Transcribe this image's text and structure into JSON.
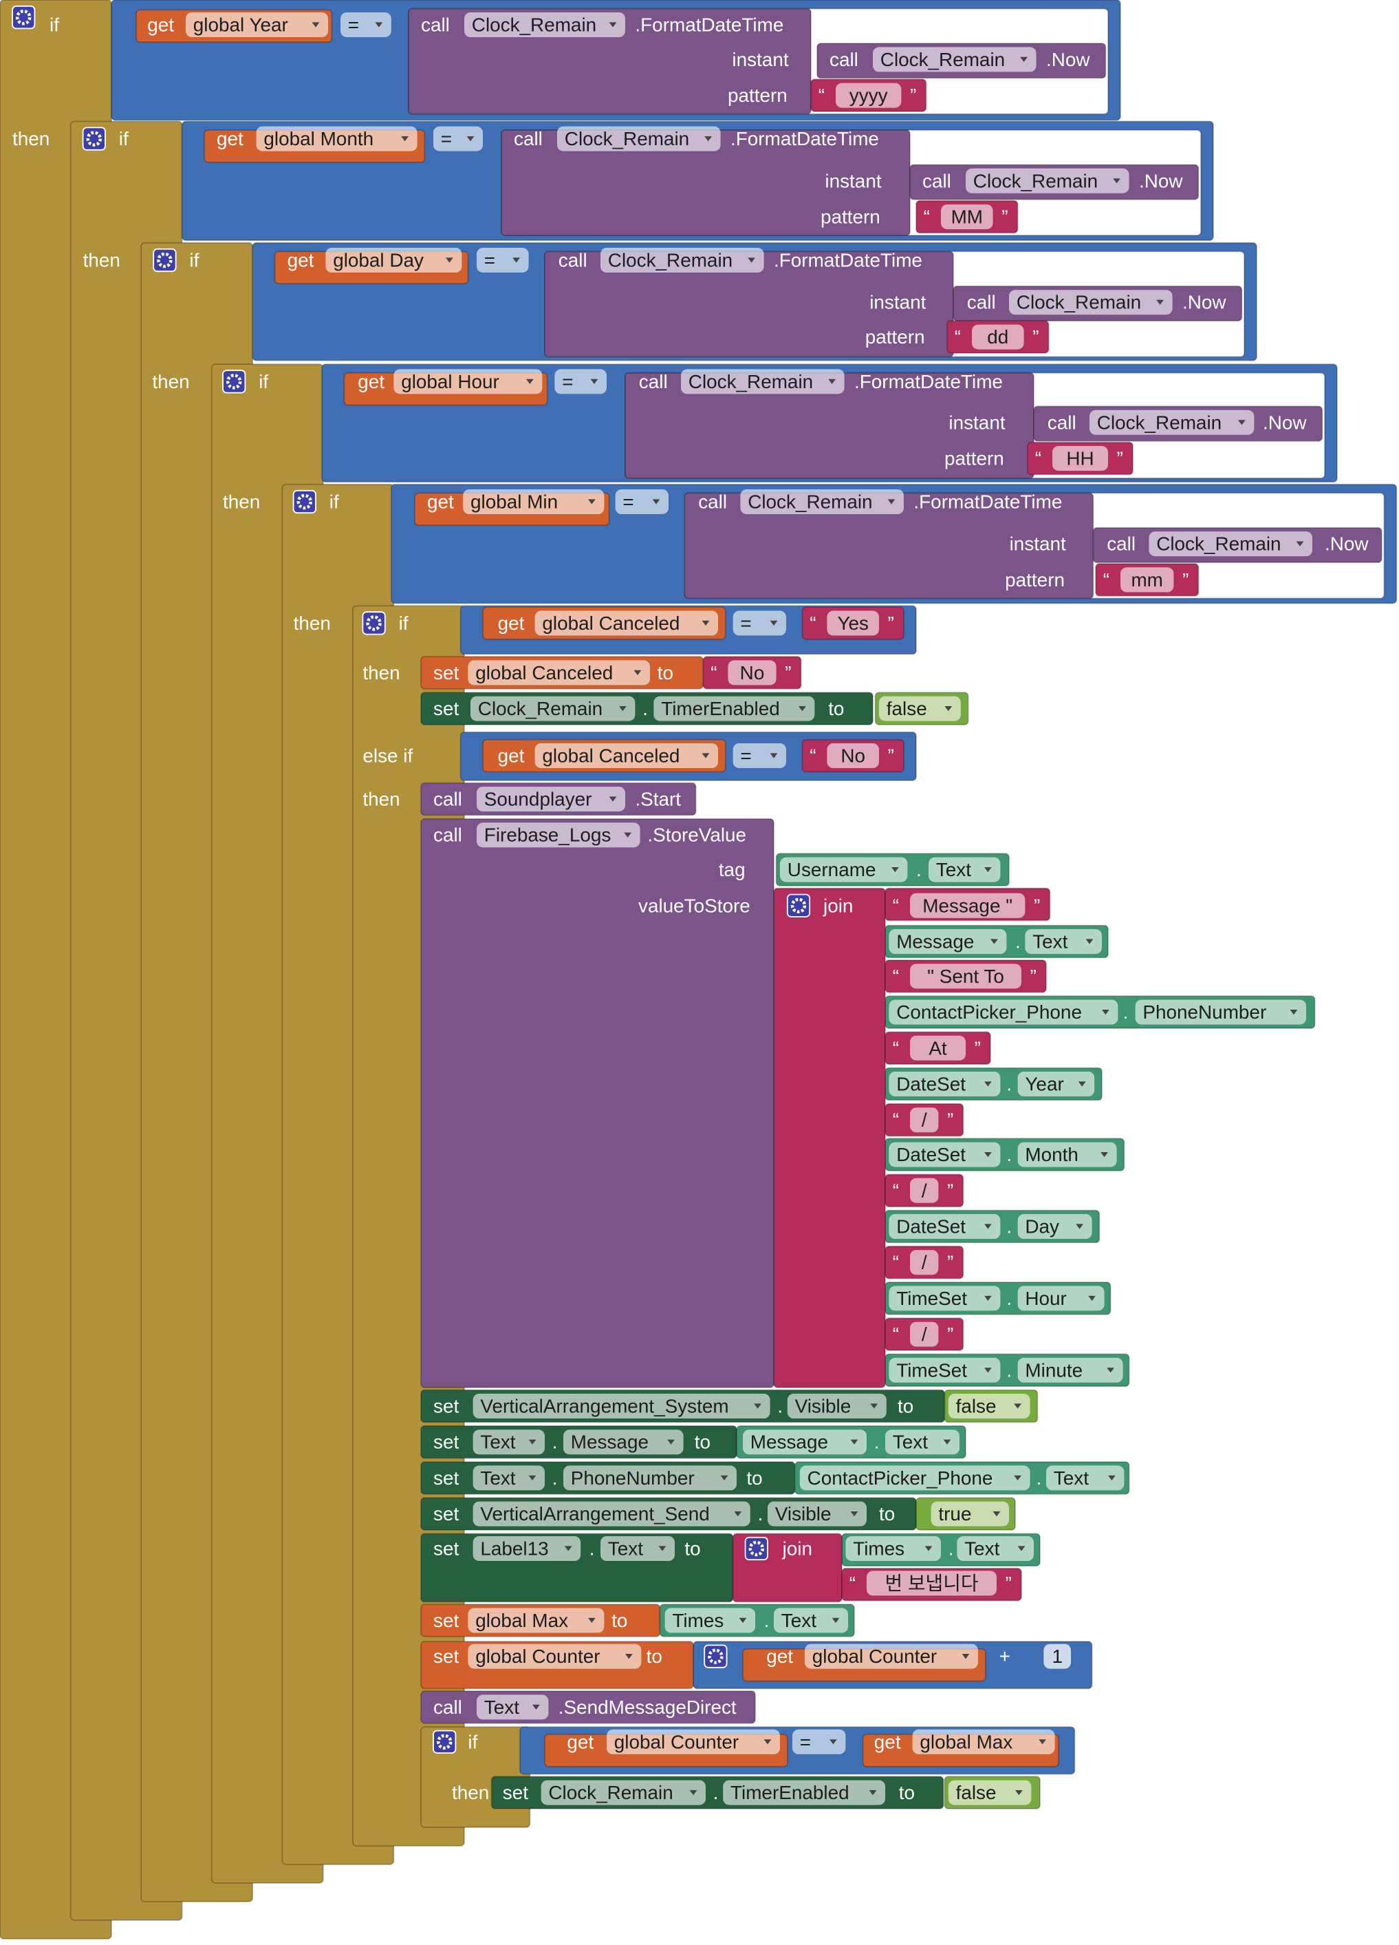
{
  "quote_open": "“",
  "quote_close": "”",
  "rows": [
    [
      "if",
      "get",
      "global Year",
      "=",
      "call",
      "Clock_Remain",
      ".FormatDateTime"
    ],
    [
      "instant",
      "call",
      "Clock_Remain",
      ".Now"
    ],
    [
      "pattern",
      "yyyy"
    ],
    [
      "then",
      "if",
      "get",
      "global Month",
      "=",
      "call",
      "Clock_Remain",
      ".FormatDateTime"
    ],
    [
      "instant",
      "call",
      "Clock_Remain",
      ".Now"
    ],
    [
      "pattern",
      "MM"
    ],
    [
      "then",
      "if",
      "get",
      "global Day",
      "=",
      "call",
      "Clock_Remain",
      ".FormatDateTime"
    ],
    [
      "instant",
      "call",
      "Clock_Remain",
      ".Now"
    ],
    [
      "pattern",
      "dd"
    ],
    [
      "then",
      "if",
      "get",
      "global Hour",
      "=",
      "call",
      "Clock_Remain",
      ".FormatDateTime"
    ],
    [
      "instant",
      "call",
      "Clock_Remain",
      ".Now"
    ],
    [
      "pattern",
      "HH"
    ],
    [
      "then",
      "if",
      "get",
      "global Min",
      "=",
      "call",
      "Clock_Remain",
      ".FormatDateTime"
    ],
    [
      "instant",
      "call",
      "Clock_Remain",
      ".Now"
    ],
    [
      "pattern",
      "mm"
    ],
    [
      "then",
      "if",
      "get",
      "global Canceled",
      "=",
      "Yes"
    ],
    [
      "then",
      "set",
      "global Canceled",
      "to",
      "No"
    ],
    [
      "set",
      "Clock_Remain",
      ".",
      "TimerEnabled",
      "to",
      "false"
    ],
    [
      "else if",
      "get",
      "global Canceled",
      "=",
      "No"
    ],
    [
      "then",
      "call",
      "Soundplayer",
      ".Start"
    ],
    [
      "call",
      "Firebase_Logs",
      ".StoreValue"
    ],
    [
      "tag",
      "Username",
      ".",
      "Text"
    ],
    [
      "valueToStore",
      "join",
      "Message \""
    ],
    [
      "Message",
      ".",
      "Text"
    ],
    [
      "\" Sent To"
    ],
    [
      "ContactPicker_Phone",
      ".",
      "PhoneNumber"
    ],
    [
      "At"
    ],
    [
      "DateSet",
      ".",
      "Year"
    ],
    [
      "/"
    ],
    [
      "DateSet",
      ".",
      "Month"
    ],
    [
      "/"
    ],
    [
      "DateSet",
      ".",
      "Day"
    ],
    [
      "/"
    ],
    [
      "TimeSet",
      ".",
      "Hour"
    ],
    [
      "/"
    ],
    [
      "TimeSet",
      ".",
      "Minute"
    ],
    [
      "set",
      "VerticalArrangement_System",
      ".",
      "Visible",
      "to",
      "false"
    ],
    [
      "set",
      "Text",
      ".",
      "Message",
      "to",
      "Message",
      ".",
      "Text"
    ],
    [
      "set",
      "Text",
      ".",
      "PhoneNumber",
      "to",
      "ContactPicker_Phone",
      ".",
      "Text"
    ],
    [
      "set",
      "VerticalArrangement_Send",
      ".",
      "Visible",
      "to",
      "true"
    ],
    [
      "set",
      "Label13",
      ".",
      "Text",
      "to",
      "join",
      "Times",
      ".",
      "Text"
    ],
    [
      "번 보냅니다"
    ],
    [
      "set",
      "global Max",
      "to",
      "Times",
      ".",
      "Text"
    ],
    [
      "set",
      "global Counter",
      "to",
      "get",
      "global Counter",
      "+",
      "1"
    ],
    [
      "call",
      "Text",
      ".SendMessageDirect"
    ],
    [
      "if",
      "get",
      "global Counter",
      "=",
      "get",
      "global Max"
    ],
    [
      "then",
      "set",
      "Clock_Remain",
      ".",
      "TimerEnabled",
      "to",
      "false"
    ]
  ]
}
